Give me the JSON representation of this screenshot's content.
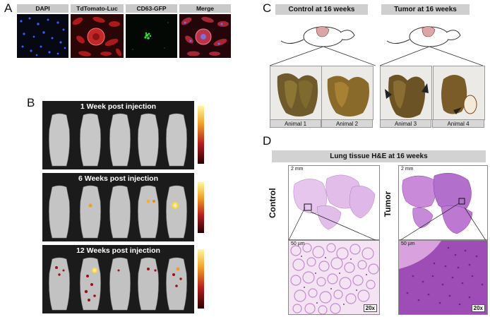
{
  "panels": {
    "a": {
      "letter": "A",
      "labels": [
        "DAPI",
        "TdTomato-Luc",
        "CD63-GFP",
        "Merge"
      ]
    },
    "b": {
      "letter": "B",
      "rows": [
        {
          "title": "1 Week post injection"
        },
        {
          "title": "6 Weeks post injection"
        },
        {
          "title": "12 Weeks post injection"
        }
      ]
    },
    "c": {
      "letter": "C",
      "control_title": "Control at 16 weeks",
      "tumor_title": "Tumor at 16 weeks",
      "captions": [
        "Animal 1",
        "Animal 2",
        "Animal 3",
        "Animal 4"
      ]
    },
    "d": {
      "letter": "D",
      "title": "Lung tissue H&E at 16 weeks",
      "control_label": "Control",
      "tumor_label": "Tumor",
      "scale_low": "2 mm",
      "scale_high": "50 µm",
      "magnification": "20x"
    }
  },
  "colors": {
    "nuclei_blue": "#3a5bff",
    "tdtomato_red": "#b81d1d",
    "gfp_green": "#30e030",
    "he_pink": "#c98ad9",
    "he_purple": "#8c3fa8"
  }
}
